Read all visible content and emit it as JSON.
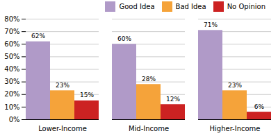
{
  "chart_data": {
    "type": "bar",
    "categories": [
      "Lower-Income",
      "Mid-Income",
      "Higher-Income"
    ],
    "series": [
      {
        "name": "Good Idea",
        "color": "#B09AC8",
        "values": [
          62,
          60,
          71
        ],
        "value_labels": [
          "62%",
          "60%",
          "71%"
        ]
      },
      {
        "name": "Bad Idea",
        "color": "#F5A33A",
        "values": [
          23,
          28,
          23
        ],
        "value_labels": [
          "23%",
          "28%",
          "23%"
        ]
      },
      {
        "name": "No Opinion",
        "color": "#CC2222",
        "values": [
          15,
          12,
          6
        ],
        "value_labels": [
          "15%",
          "12%",
          "6%"
        ]
      }
    ],
    "ylim": [
      0,
      80
    ],
    "yticks": [
      {
        "value": 0,
        "label": "0%"
      },
      {
        "value": 10,
        "label": "10%"
      },
      {
        "value": 20,
        "label": "20%"
      },
      {
        "value": 30,
        "label": "30%"
      },
      {
        "value": 40,
        "label": "40%"
      },
      {
        "value": 50,
        "label": "50%"
      },
      {
        "value": 60,
        "label": "60%"
      },
      {
        "value": 70,
        "label": "70%"
      },
      {
        "value": 80,
        "label": "80%"
      }
    ],
    "grid": true,
    "legend": "upper right",
    "data_labels": true
  }
}
